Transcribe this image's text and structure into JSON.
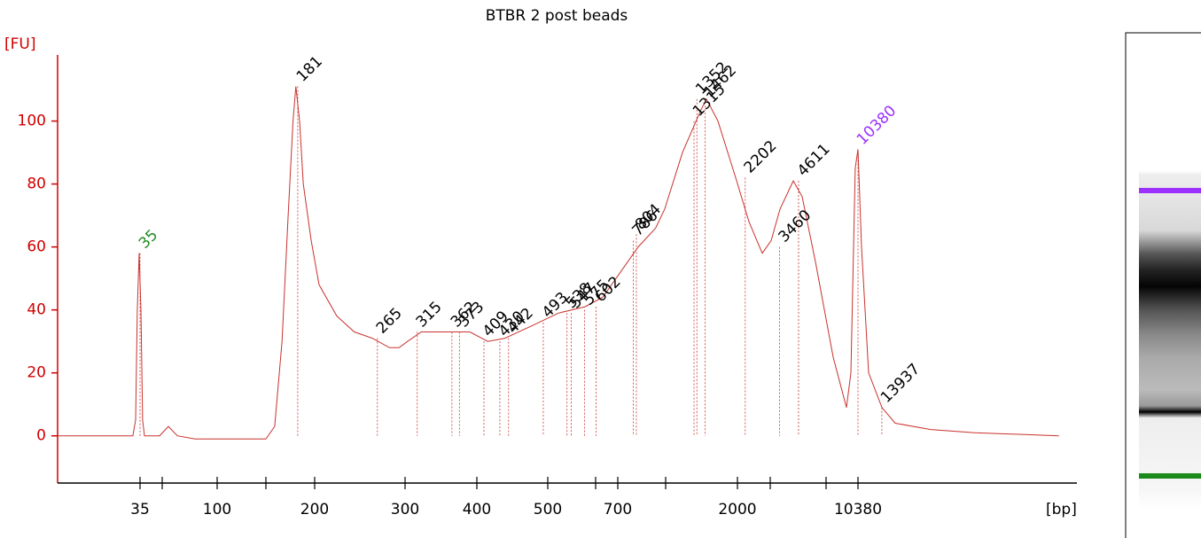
{
  "chart_data": {
    "type": "line",
    "title": "BTBR 2 post beads",
    "y_label": "[FU]",
    "x_label": "[bp]",
    "xlim": [
      9.3,
      124000
    ],
    "ylim": [
      -15,
      121
    ],
    "yticks": [
      0,
      20,
      40,
      60,
      80,
      100
    ],
    "xticks": [
      35,
      {
        "value": 50,
        "label": null
      },
      100,
      {
        "value": 150,
        "label": null
      },
      200,
      300,
      400,
      500,
      {
        "value": 600,
        "label": null
      },
      700,
      {
        "value": 1000,
        "label": null
      },
      2000,
      {
        "value": 3000,
        "label": null
      },
      {
        "value": 7000,
        "label": null
      },
      10380
    ],
    "x": [
      9.3,
      31.2,
      32.6,
      33.5,
      34.5,
      35.5,
      36.5,
      37.6,
      47.9,
      54.1,
      60.5,
      75.6,
      150,
      158,
      165,
      171,
      176,
      179,
      183,
      187,
      196,
      204,
      221,
      239,
      259,
      280,
      292,
      303,
      320,
      350,
      389,
      414,
      437,
      476,
      521,
      576,
      630,
      714,
      815,
      928,
      993,
      1177,
      1396,
      1482,
      1657,
      1966,
      2306,
      2719,
      3040,
      3478,
      4256,
      4868,
      5971,
      7640,
      9002,
      9509,
      10036,
      10380,
      10844,
      11836,
      13947,
      16435,
      25458,
      43978,
      124000
    ],
    "series": [
      {
        "name": "BTBR 2 post beads",
        "color": "#c8322d",
        "values": [
          0,
          0,
          5,
          40,
          58,
          40,
          5,
          0,
          0,
          3,
          0,
          -1,
          -1,
          3,
          30,
          70,
          100,
          111,
          100,
          80,
          62,
          48,
          38,
          33,
          31,
          28,
          28,
          30,
          33,
          33,
          33,
          30,
          31,
          35,
          39,
          41,
          44,
          52,
          60,
          66,
          72,
          90,
          103,
          107,
          100,
          82,
          68,
          58,
          62,
          72,
          81,
          76,
          55,
          25,
          9,
          20,
          85,
          91,
          60,
          20,
          9,
          4,
          2,
          1,
          0
        ]
      }
    ],
    "peaks": [
      {
        "size": 35,
        "height": 58,
        "color": "#228b22"
      },
      {
        "size": 181,
        "height": 111,
        "color": "#000000"
      },
      {
        "size": 265,
        "height": 31,
        "color": "#000000"
      },
      {
        "size": 315,
        "height": 33,
        "color": "#000000"
      },
      {
        "size": 362,
        "height": 33,
        "color": "#000000"
      },
      {
        "size": 373,
        "height": 33,
        "color": "#000000"
      },
      {
        "size": 409,
        "height": 30,
        "color": "#000000"
      },
      {
        "size": 430,
        "height": 30,
        "color": "#000000"
      },
      {
        "size": 442,
        "height": 31,
        "color": "#000000"
      },
      {
        "size": 493,
        "height": 36,
        "color": "#000000"
      },
      {
        "size": 538,
        "height": 39,
        "color": "#000000"
      },
      {
        "size": 547,
        "height": 39,
        "color": "#000000"
      },
      {
        "size": 575,
        "height": 40,
        "color": "#000000"
      },
      {
        "size": 602,
        "height": 41,
        "color": "#000000"
      },
      {
        "size": 786,
        "height": 62,
        "color": "#000000"
      },
      {
        "size": 804,
        "height": 64,
        "color": "#000000"
      },
      {
        "size": 1315,
        "height": 100,
        "color": "#000000"
      },
      {
        "size": 1352,
        "height": 107,
        "color": "#000000"
      },
      {
        "size": 1462,
        "height": 106,
        "color": "#000000"
      },
      {
        "size": 2202,
        "height": 82,
        "color": "#000000"
      },
      {
        "size": 3460,
        "height": 60,
        "color": "#000000"
      },
      {
        "size": 4611,
        "height": 81,
        "color": "#000000"
      },
      {
        "size": 10380,
        "height": 91,
        "color": "#9b30ff"
      },
      {
        "size": 13937,
        "height": 9,
        "color": "#000000"
      }
    ]
  }
}
